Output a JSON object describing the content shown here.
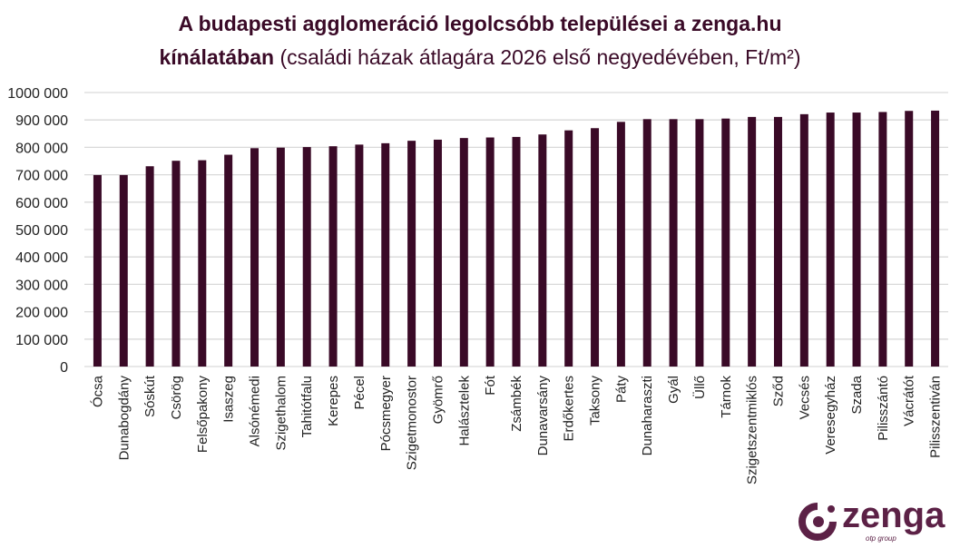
{
  "chart_data": {
    "type": "bar",
    "title": "A budapesti agglomeráció legolcsóbb települései a zenga.hu",
    "title_line2_bold": "kínálatában",
    "subtitle": "(családi házak átlagára 2026 első negyedévében, Ft/m²)",
    "categories": [
      "Ócsa",
      "Dunabogdány",
      "Sóskút",
      "Csörög",
      "Felsőpakony",
      "Isaszeg",
      "Alsónémedi",
      "Szigethalom",
      "Tahitótfalu",
      "Kerepes",
      "Pécel",
      "Pócsmegyer",
      "Szigetmonostor",
      "Gyömrő",
      "Halásztelek",
      "Fót",
      "Zsámbék",
      "Dunavarsány",
      "Erdőkertes",
      "Taksony",
      "Páty",
      "Dunaharaszti",
      "Gyál",
      "Üllő",
      "Tárnok",
      "Szigetszentmiklós",
      "Sződ",
      "Vecsés",
      "Veresegyház",
      "Szada",
      "Pilisszántó",
      "Vácrátót",
      "Pilisszentiván"
    ],
    "values": [
      699000,
      699000,
      731000,
      751000,
      753000,
      773000,
      797000,
      799000,
      801000,
      804000,
      810000,
      815000,
      824000,
      828000,
      834000,
      836000,
      838000,
      847000,
      862000,
      870000,
      893000,
      903000,
      903000,
      903000,
      905000,
      911000,
      911000,
      921000,
      927000,
      927000,
      929000,
      933000,
      934000
    ],
    "ylim": [
      0,
      1000000
    ],
    "yticks": [
      0,
      100000,
      200000,
      300000,
      400000,
      500000,
      600000,
      700000,
      800000,
      900000,
      1000000
    ],
    "ytick_labels": [
      "0",
      "100 000",
      "200 000",
      "300 000",
      "400 000",
      "500 000",
      "600 000",
      "700 000",
      "800 000",
      "900 000",
      "1000 000"
    ],
    "xlabel": "",
    "ylabel": "",
    "grid": true,
    "legend": "none",
    "bar_color": "#3a0a27",
    "grid_color": "#d9d9d9"
  },
  "logo": {
    "text": "zenga",
    "sub": "otp group",
    "color": "#5c2146"
  }
}
